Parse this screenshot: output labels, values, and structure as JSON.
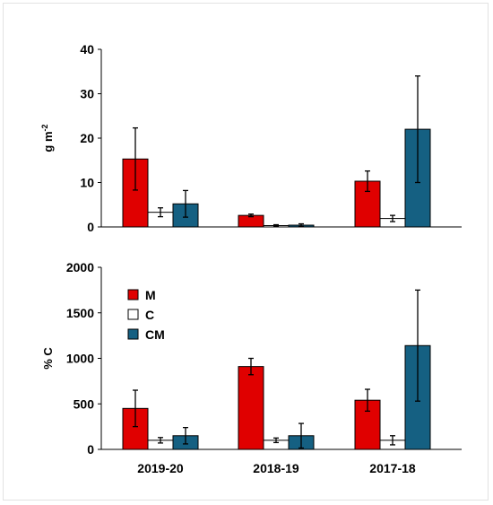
{
  "chart_data": [
    {
      "type": "bar",
      "ylabel": "g m",
      "ylabel_sup": "-2",
      "ylim": [
        0,
        40
      ],
      "yticks": [
        0,
        10,
        20,
        30,
        40
      ],
      "categories": [
        "2019-20",
        "2018-19",
        "2017-18"
      ],
      "show_xticklabels": false,
      "series": [
        {
          "name": "M",
          "color": "#e00000",
          "values": [
            15.3,
            2.6,
            10.3
          ],
          "errors": [
            7.0,
            0.3,
            2.3
          ]
        },
        {
          "name": "C",
          "color": "#ffffff",
          "values": [
            3.3,
            0.3,
            1.9
          ],
          "errors": [
            1.0,
            0.2,
            0.7
          ]
        },
        {
          "name": "CM",
          "color": "#156082",
          "values": [
            5.2,
            0.4,
            22.0
          ],
          "errors": [
            3.0,
            0.3,
            12.0
          ]
        }
      ]
    },
    {
      "type": "bar",
      "ylabel": "% C",
      "ylim": [
        0,
        2000
      ],
      "yticks": [
        0,
        500,
        1000,
        1500,
        2000
      ],
      "categories": [
        "2019-20",
        "2018-19",
        "2017-18"
      ],
      "show_xticklabels": true,
      "legend": "top-left",
      "series": [
        {
          "name": "M",
          "color": "#e00000",
          "values": [
            450,
            910,
            540
          ],
          "errors": [
            200,
            90,
            120
          ]
        },
        {
          "name": "C",
          "color": "#ffffff",
          "values": [
            100,
            100,
            100
          ],
          "errors": [
            30,
            25,
            50
          ]
        },
        {
          "name": "CM",
          "color": "#156082",
          "values": [
            150,
            150,
            1140
          ],
          "errors": [
            90,
            135,
            610
          ]
        }
      ]
    }
  ]
}
